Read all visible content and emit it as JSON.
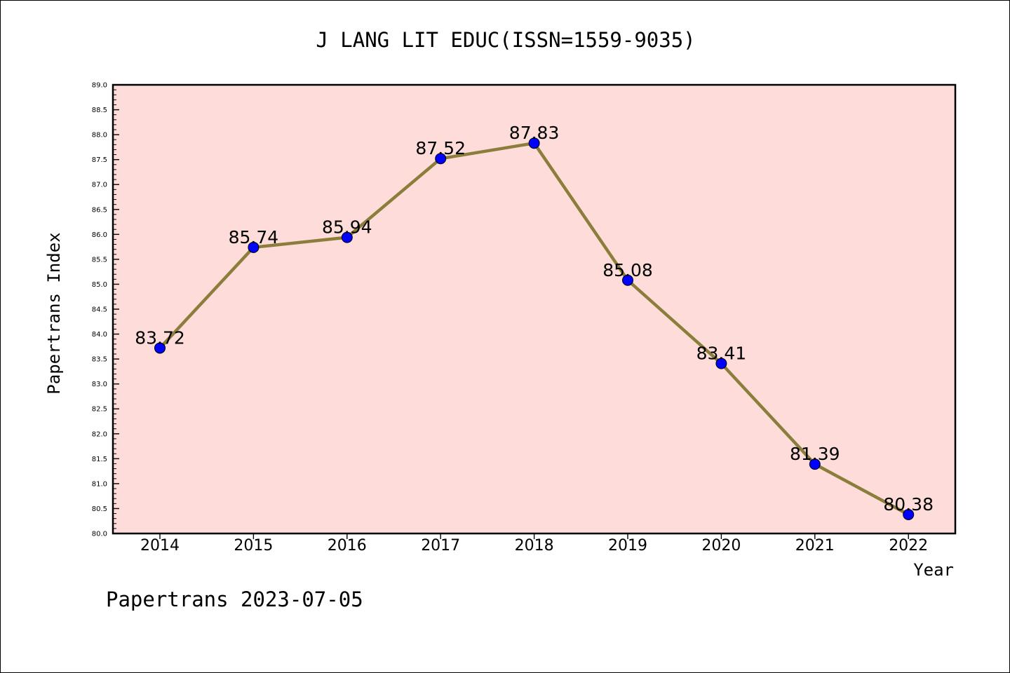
{
  "chart_data": {
    "type": "line",
    "title": "J LANG LIT EDUC(ISSN=1559-9035)",
    "xlabel": "Year",
    "ylabel": "Papertrans Index",
    "categories": [
      "2014",
      "2015",
      "2016",
      "2017",
      "2018",
      "2019",
      "2020",
      "2021",
      "2022"
    ],
    "values": [
      83.72,
      85.74,
      85.94,
      87.52,
      87.83,
      85.08,
      83.41,
      81.39,
      80.38
    ],
    "value_labels": [
      "83.72",
      "85.74",
      "85.94",
      "87.52",
      "87.83",
      "85.08",
      "83.41",
      "81.39",
      "80.38"
    ],
    "ylim": [
      80.0,
      89.0
    ],
    "yticks": [
      "80.0",
      "80.5",
      "81.0",
      "81.5",
      "82.0",
      "82.5",
      "83.0",
      "83.5",
      "84.0",
      "84.5",
      "85.0",
      "85.5",
      "86.0",
      "86.5",
      "87.0",
      "87.5",
      "88.0",
      "88.5",
      "89.0"
    ],
    "grid": false,
    "colors": {
      "plot_background": "#fddcda",
      "line": "#8b7d3a",
      "marker": "#0000ff"
    },
    "footer": "Papertrans 2023-07-05"
  }
}
